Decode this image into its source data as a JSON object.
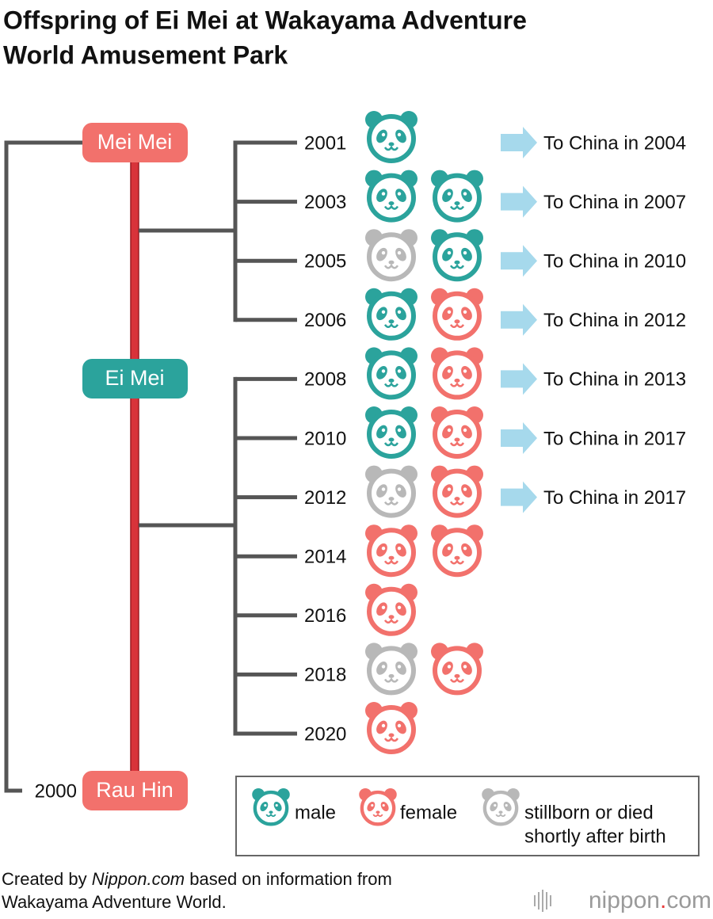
{
  "title": [
    "Offspring of Ei Mei at Wakayama Adventure",
    "World Amusement Park"
  ],
  "parents": {
    "mother_top": "Mei Mei",
    "father": "Ei Mei",
    "mother_bottom": "Rau Hin",
    "mother_bottom_year": "2000"
  },
  "colors": {
    "male": "#2ba39c",
    "female": "#f2716c",
    "stillborn": "#b8b8b8"
  },
  "groups": [
    {
      "parent": "mother_top",
      "litters": [
        {
          "year": "2001",
          "cubs": [
            "male"
          ],
          "note": "To China in 2004"
        },
        {
          "year": "2003",
          "cubs": [
            "male",
            "male"
          ],
          "note": "To China in 2007"
        },
        {
          "year": "2005",
          "cubs": [
            "stillborn",
            "male"
          ],
          "note": "To China in 2010"
        },
        {
          "year": "2006",
          "cubs": [
            "male",
            "female"
          ],
          "note": "To China in 2012"
        }
      ]
    },
    {
      "parent": "mother_bottom",
      "litters": [
        {
          "year": "2008",
          "cubs": [
            "male",
            "female"
          ],
          "note": "To China in 2013"
        },
        {
          "year": "2010",
          "cubs": [
            "male",
            "female"
          ],
          "note": "To China in 2017"
        },
        {
          "year": "2012",
          "cubs": [
            "stillborn",
            "female"
          ],
          "note": "To China in 2017"
        },
        {
          "year": "2014",
          "cubs": [
            "female",
            "female"
          ]
        },
        {
          "year": "2016",
          "cubs": [
            "female"
          ]
        },
        {
          "year": "2018",
          "cubs": [
            "stillborn",
            "female"
          ]
        },
        {
          "year": "2020",
          "cubs": [
            "female"
          ]
        }
      ]
    }
  ],
  "legend": [
    {
      "kind": "male",
      "lines": [
        "male"
      ]
    },
    {
      "kind": "female",
      "lines": [
        "female"
      ]
    },
    {
      "kind": "stillborn",
      "lines": [
        "stillborn or died",
        "shortly after birth"
      ]
    }
  ],
  "footer": {
    "credit": [
      "Created by ",
      "Nippon.com",
      " based on information from"
    ],
    "credit_line2": "Wakayama Adventure World.",
    "logo": [
      "nippon",
      ".",
      "com"
    ]
  }
}
